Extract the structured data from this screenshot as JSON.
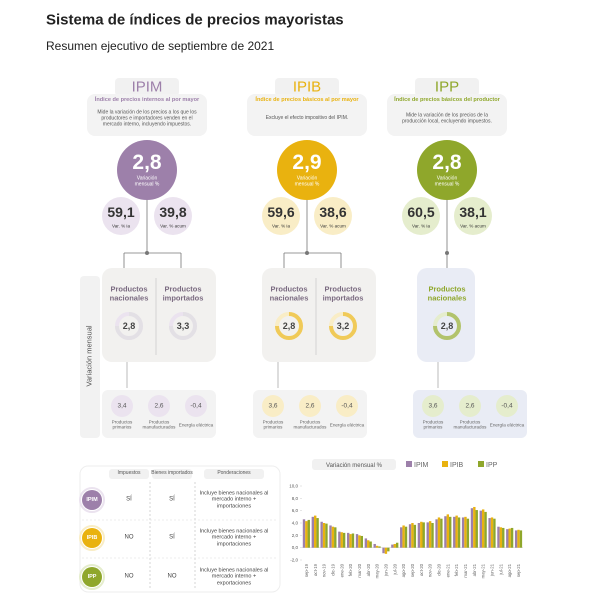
{
  "header": {
    "title": "Sistema de índices de precios mayoristas",
    "subtitle": "Resumen ejecutivo de septiembre de 2021"
  },
  "side_label": "Variación mensual",
  "indices": [
    {
      "code": "IPIM",
      "color": "#9d80aa",
      "light": "#ebe3ef",
      "name": "Índice de precios internos al por mayor",
      "description": "Mide la variación de los precios a los que los productores e importadores venden en el mercado interno, incluyendo impuestos.",
      "monthly": "2,8",
      "monthly_label": "Variación mensual %",
      "yoy": "59,1",
      "yoy_label": "Var. % ia",
      "ytd": "39,8",
      "ytd_label": "Var. % acum",
      "products": [
        {
          "label": "Productos nacionales",
          "value": "2,8"
        },
        {
          "label": "Productos importados",
          "value": "3,3"
        }
      ],
      "breakdown": [
        {
          "value": "3,4",
          "label": "Productos primarios"
        },
        {
          "value": "2,6",
          "label": "Productos manufacturados"
        },
        {
          "value": "-0,4",
          "label": "Energía eléctrica"
        }
      ]
    },
    {
      "code": "IPIB",
      "color": "#e9b20f",
      "light": "#f9edc6",
      "name": "Índice de precios básicos al por mayor",
      "description": "Excluye el efecto impositivo del IPIM.",
      "monthly": "2,9",
      "monthly_label": "Variación mensual %",
      "yoy": "59,6",
      "yoy_label": "Var. % ia",
      "ytd": "38,6",
      "ytd_label": "Var. % acum",
      "products": [
        {
          "label": "Productos nacionales",
          "value": "2,8"
        },
        {
          "label": "Productos importados",
          "value": "3,2"
        }
      ],
      "breakdown": [
        {
          "value": "3,6",
          "label": "Productos primarios"
        },
        {
          "value": "2,6",
          "label": "Productos manufacturados"
        },
        {
          "value": "-0,4",
          "label": "Energía eléctrica"
        }
      ]
    },
    {
      "code": "IPP",
      "color": "#8fa72b",
      "light": "#e5edcd",
      "name": "Índice de precios básicos del productor",
      "description": "Mide la variación de los precios de la producción local, excluyendo impuestos.",
      "monthly": "2,8",
      "monthly_label": "Variación mensual %",
      "yoy": "60,5",
      "yoy_label": "Var. % ia",
      "ytd": "38,1",
      "ytd_label": "Var. % acum",
      "products": [
        {
          "label": "Productos nacionales",
          "value": "2,8"
        }
      ],
      "breakdown": [
        {
          "value": "3,6",
          "label": "Productos primarios"
        },
        {
          "value": "2,6",
          "label": "Productos manufacturados"
        },
        {
          "value": "-0,4",
          "label": "Energía eléctrica"
        }
      ]
    }
  ],
  "table": {
    "columns": [
      "Impuestos",
      "Bienes importados",
      "Ponderaciones"
    ],
    "rows": [
      [
        "SÍ",
        "SÍ",
        "Incluye bienes nacionales al mercado interno + importaciones"
      ],
      [
        "NO",
        "SÍ",
        "Incluye bienes nacionales al mercado interno + importaciones"
      ],
      [
        "NO",
        "NO",
        "Incluye bienes nacionales al mercado interno + exportaciones"
      ]
    ]
  },
  "chart_data": {
    "type": "bar",
    "title": "Variación mensual %",
    "categories": [
      "sep-19",
      "oct-19",
      "nov-19",
      "dic-19",
      "ene-20",
      "feb-20",
      "mar-20",
      "abr-20",
      "may-20",
      "jun-20",
      "jul-20",
      "ago-20",
      "sep-20",
      "oct-20",
      "nov-20",
      "dic-20",
      "ene-21",
      "feb-21",
      "mar-21",
      "abr-21",
      "may-21",
      "jun-21",
      "jul-21",
      "ago-21",
      "sep-21"
    ],
    "series": [
      {
        "name": "IPIM",
        "color": "#9d80aa",
        "values": [
          4.6,
          5.0,
          4.2,
          3.6,
          2.6,
          2.4,
          2.2,
          1.5,
          0.6,
          -0.9,
          0.5,
          3.3,
          3.8,
          4.0,
          4.1,
          4.6,
          5.1,
          5.0,
          4.9,
          6.4,
          6.0,
          4.8,
          3.4,
          3.0,
          2.8
        ]
      },
      {
        "name": "IPIB",
        "color": "#e9b20f",
        "values": [
          4.3,
          5.2,
          4.0,
          3.4,
          2.5,
          2.2,
          2.0,
          1.2,
          0.3,
          -1.0,
          0.6,
          3.6,
          4.0,
          4.2,
          4.3,
          4.9,
          5.4,
          5.2,
          5.0,
          6.6,
          6.2,
          4.9,
          3.3,
          3.1,
          2.9
        ]
      },
      {
        "name": "IPP",
        "color": "#8fa72b",
        "values": [
          4.5,
          4.8,
          3.9,
          3.3,
          2.4,
          2.3,
          1.9,
          1.0,
          0.2,
          -0.6,
          0.8,
          3.4,
          3.7,
          4.1,
          4.0,
          4.7,
          5.0,
          4.9,
          4.7,
          6.1,
          5.8,
          4.7,
          3.2,
          3.2,
          2.8
        ]
      }
    ],
    "ylim": [
      -2,
      10
    ],
    "yticks": [
      {
        "value": 10,
        "label": "10,0"
      },
      {
        "value": 8,
        "label": "8,0"
      },
      {
        "value": 6,
        "label": "6,0"
      },
      {
        "value": 4,
        "label": "4,0"
      },
      {
        "value": 2,
        "label": "2,0"
      },
      {
        "value": 0,
        "label": "0,0"
      },
      {
        "value": -2,
        "label": "-2,0"
      }
    ],
    "grid": false
  }
}
